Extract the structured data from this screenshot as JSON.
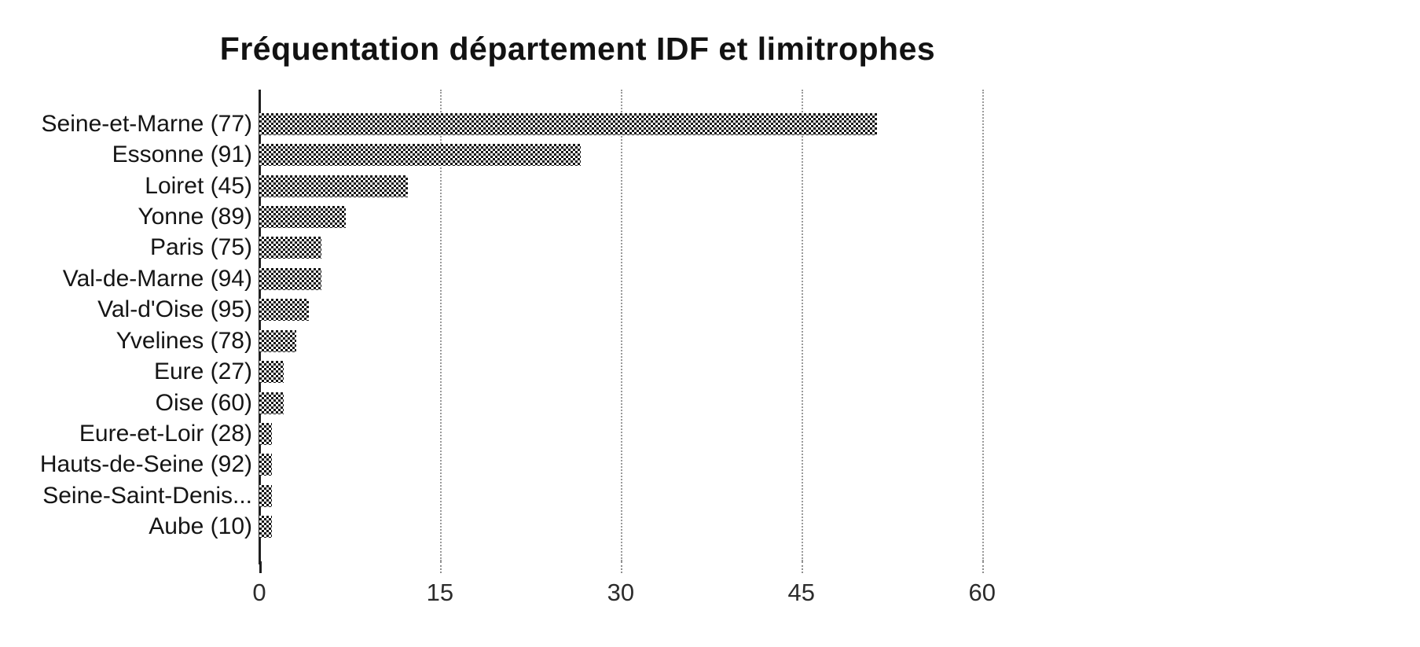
{
  "chart_data": {
    "type": "bar",
    "orientation": "horizontal",
    "title": "Fréquentation département IDF et limitrophes",
    "categories": [
      "Seine-et-Marne (77)",
      "Essonne (91)",
      "Loiret (45)",
      "Yonne (89)",
      "Paris (75)",
      "Val-de-Marne (94)",
      "Val-d'Oise (95)",
      "Yvelines (78)",
      "Eure (27)",
      "Oise (60)",
      "Eure-et-Loir (28)",
      "Hauts-de-Seine (92)",
      "Seine-Saint-Denis...",
      "Aube (10)"
    ],
    "values": [
      50,
      26,
      12,
      7,
      5,
      5,
      4,
      3,
      2,
      2,
      1,
      1,
      1,
      1
    ],
    "xlabel": "",
    "ylabel": "",
    "xticks": [
      0,
      15,
      30,
      45,
      60
    ],
    "xlim": [
      0,
      70
    ],
    "grid": "vertical dotted gridlines at ticks",
    "legend": "none",
    "colors": {
      "bar": "#3f3f3f",
      "bar_pattern": "black-white dither checkerboard",
      "gridline": "#9a9a9a",
      "axis": "#1f1f1f",
      "text": "#151515",
      "background": "#ffffff"
    }
  }
}
